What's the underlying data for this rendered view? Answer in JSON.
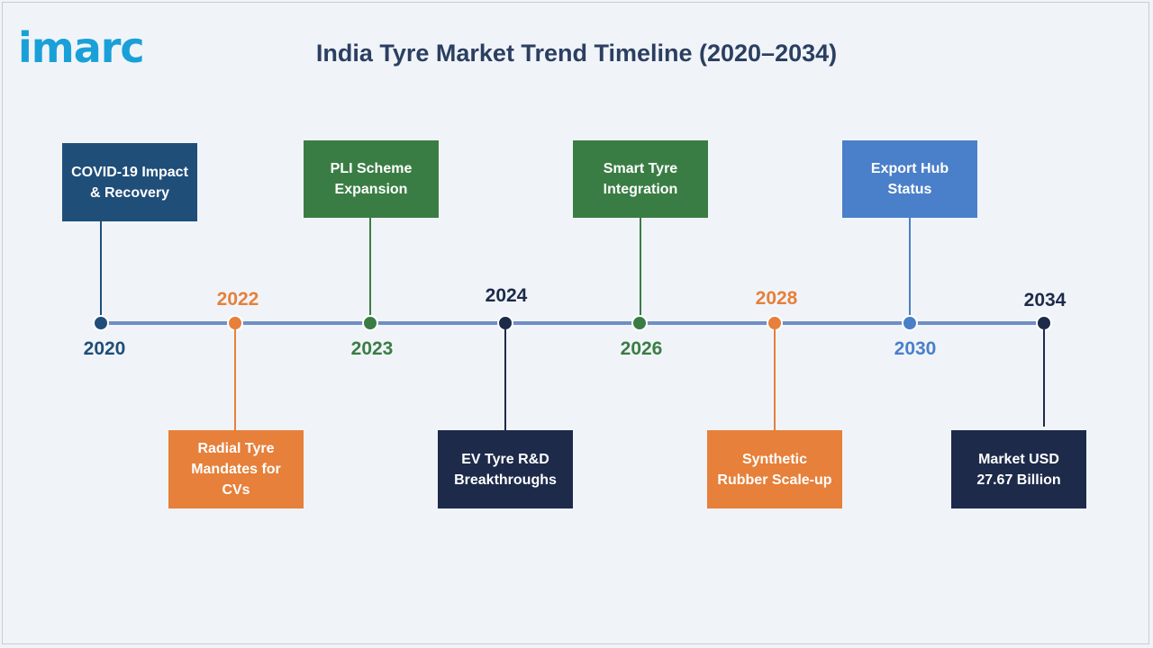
{
  "logo": "imarc",
  "title": "India Tyre Market Trend Timeline (2020–2034)",
  "colors": {
    "navy": "#1f4e79",
    "orange": "#e6803a",
    "green": "#3a7d44",
    "dark_navy": "#1d2a4a",
    "blue": "#4a7fc9",
    "axis": "#6f8fc4"
  },
  "milestones": [
    {
      "year": "2020",
      "label": "COVID-19 Impact & Recovery",
      "color": "#1f4e79",
      "text_color": "#1f4e79"
    },
    {
      "year": "2022",
      "label": "Radial Tyre Mandates for CVs",
      "color": "#e6803a",
      "text_color": "#e6803a"
    },
    {
      "year": "2023",
      "label": "PLI Scheme Expansion",
      "color": "#3a7d44",
      "text_color": "#3a7d44"
    },
    {
      "year": "2024",
      "label": "EV Tyre R&D Breakthroughs",
      "color": "#1d2a4a",
      "text_color": "#1d2a4a"
    },
    {
      "year": "2026",
      "label": "Smart Tyre Integration",
      "color": "#3a7d44",
      "text_color": "#3a7d44"
    },
    {
      "year": "2028",
      "label": "Synthetic Rubber Scale-up",
      "color": "#e6803a",
      "text_color": "#e6803a"
    },
    {
      "year": "2030",
      "label": "Export Hub Status",
      "color": "#4a7fc9",
      "text_color": "#4a7fc9"
    },
    {
      "year": "2034",
      "label": "Market USD 27.67 Billion",
      "color": "#1d2a4a",
      "text_color": "#1d2a4a"
    }
  ]
}
